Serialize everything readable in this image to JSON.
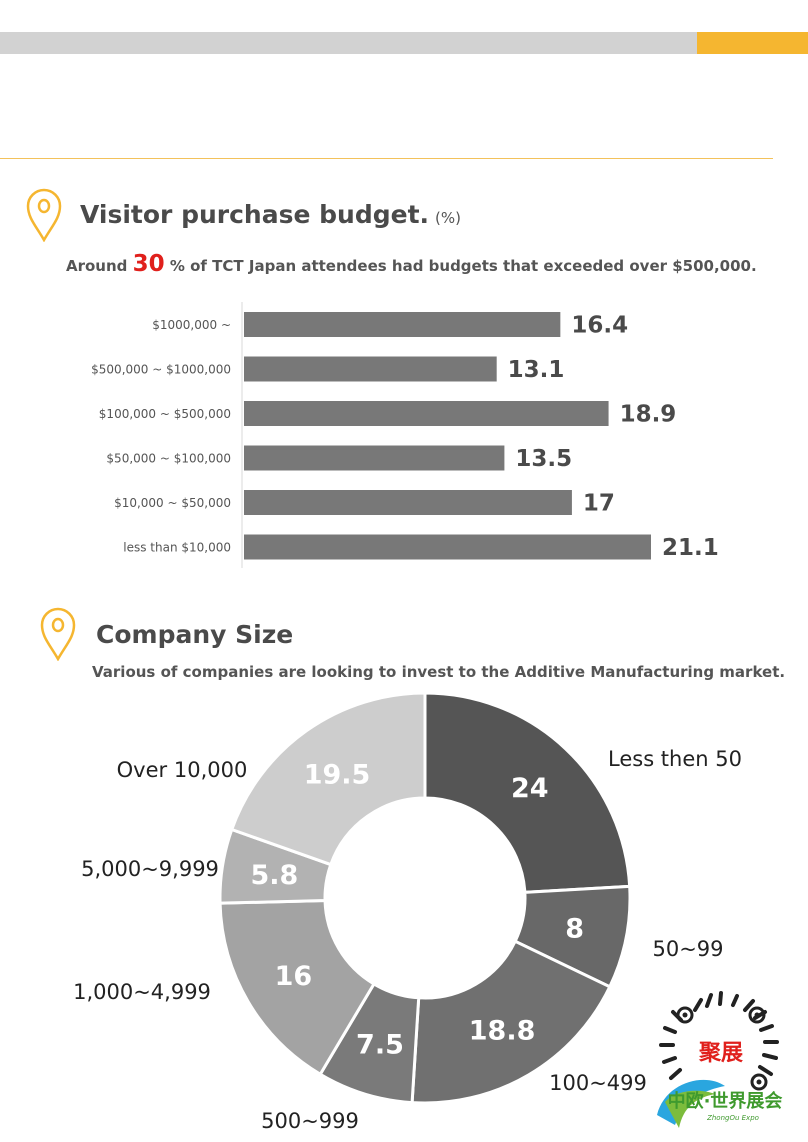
{
  "section1": {
    "title": "Visitor purchase budget.",
    "unit": "(%)",
    "subtitle_prefix": "Around ",
    "subtitle_highlight": "30",
    "subtitle_suffix": " %  of TCT Japan attendees had budgets that exceeded over $500,000."
  },
  "section2": {
    "title": "Company Size",
    "subtitle": "Various of companies are looking to invest to the Additive Manufacturing market."
  },
  "logo": {
    "line1": "聚展",
    "line2": "中欧·世界展会",
    "line3": "ZhongOu Expo"
  },
  "colors": {
    "accent": "#f5b630",
    "highlight": "#e0201c",
    "bar": "#787878"
  },
  "chart_data": [
    {
      "type": "bar",
      "orientation": "horizontal",
      "categories": [
        "$1000,000 ~",
        "$500,000 ~ $1000,000",
        "$100,000 ~ $500,000",
        "$50,000 ~ $100,000",
        "$10,000 ~ $50,000",
        "less than $10,000"
      ],
      "values": [
        16.4,
        13.1,
        18.9,
        13.5,
        17,
        21.1
      ],
      "value_labels": [
        "16.4",
        "13.1",
        "18.9",
        "13.5",
        "17",
        "21.1"
      ],
      "xlim": [
        0,
        22.5
      ],
      "grid": false
    },
    {
      "type": "pie",
      "donut": true,
      "categories": [
        "Less then 50",
        "50~99",
        "100~499",
        "500~999",
        "1,000~4,999",
        "5,000~9,999",
        "Over 10,000"
      ],
      "values": [
        24,
        8,
        18.8,
        7.5,
        16,
        5.8,
        19.5
      ],
      "value_labels": [
        "24",
        "8",
        "18.8",
        "7.5",
        "16",
        "5.8",
        "19.5"
      ],
      "colors": [
        "#555555",
        "#686868",
        "#707070",
        "#7a7a7a",
        "#a3a3a3",
        "#b2b2b2",
        "#cdcdcd"
      ]
    }
  ]
}
